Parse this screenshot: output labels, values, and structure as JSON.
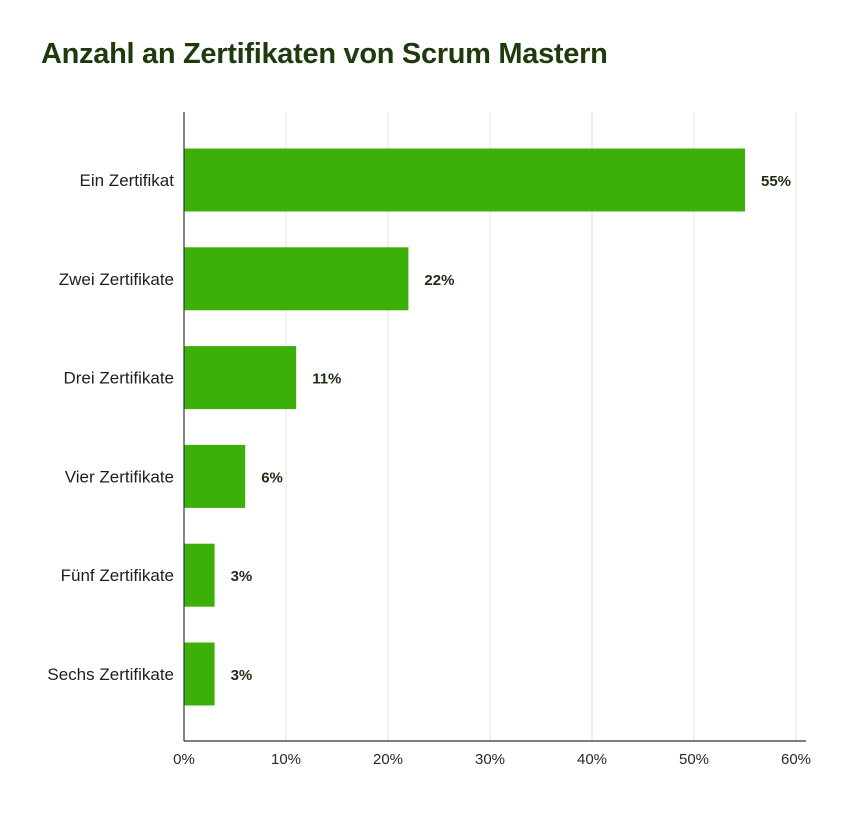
{
  "chart_data": {
    "type": "bar",
    "orientation": "horizontal",
    "title": "Anzahl an Zertifikaten von Scrum Mastern",
    "categories": [
      "Ein Zertifikat",
      "Zwei Zertifikate",
      "Drei Zertifikate",
      "Vier Zertifikate",
      "Fünf Zertifikate",
      "Sechs Zertifikate"
    ],
    "values": [
      55,
      22,
      11,
      6,
      3,
      3
    ],
    "data_labels": [
      "55%",
      "22%",
      "11%",
      "6%",
      "3%",
      "3%"
    ],
    "xlim": [
      0,
      60
    ],
    "x_ticks": [
      0,
      10,
      20,
      30,
      40,
      50,
      60
    ],
    "x_tick_labels": [
      "0%",
      "10%",
      "20%",
      "30%",
      "40%",
      "50%",
      "60%"
    ],
    "xlabel": "",
    "ylabel": "",
    "grid": "vertical",
    "bar_color": "#3cb009",
    "legend": "none"
  }
}
